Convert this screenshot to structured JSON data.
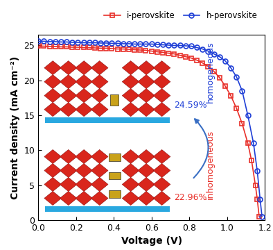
{
  "chart_data": {
    "type": "line",
    "x_label": "Voltage (V)",
    "y_label": "Current density (mA cm⁻²)",
    "xlim": [
      0.0,
      1.2
    ],
    "xticks": [
      {
        "value": 0.0,
        "label": "0.0"
      },
      {
        "value": 0.2,
        "label": "0.2"
      },
      {
        "value": 0.4,
        "label": "0.4"
      },
      {
        "value": 0.6,
        "label": "0.6"
      },
      {
        "value": 0.8,
        "label": "0.8"
      },
      {
        "value": 1.0,
        "label": "1.0"
      },
      {
        "value": 1.2,
        "label": "1.2"
      }
    ],
    "ylim": [
      0,
      26.5
    ],
    "yticks": [
      0,
      5,
      10,
      15,
      20,
      25
    ],
    "legend": "upper right",
    "series": [
      {
        "name": "i-perovskite",
        "color": "#e8302a",
        "marker": "square",
        "x": [
          0.0,
          0.03,
          0.06,
          0.09,
          0.12,
          0.15,
          0.18,
          0.21,
          0.24,
          0.27,
          0.3,
          0.33,
          0.36,
          0.39,
          0.42,
          0.45,
          0.48,
          0.51,
          0.54,
          0.57,
          0.6,
          0.63,
          0.66,
          0.69,
          0.72,
          0.75,
          0.78,
          0.81,
          0.84,
          0.87,
          0.9,
          0.93,
          0.96,
          0.99,
          1.02,
          1.05,
          1.08,
          1.11,
          1.13,
          1.15,
          1.16,
          1.17
        ],
        "values": [
          24.9,
          24.9,
          24.85,
          24.85,
          24.8,
          24.8,
          24.75,
          24.75,
          24.7,
          24.7,
          24.65,
          24.6,
          24.6,
          24.55,
          24.5,
          24.5,
          24.45,
          24.4,
          24.35,
          24.3,
          24.2,
          24.1,
          24.0,
          23.9,
          23.8,
          23.6,
          23.4,
          23.2,
          22.9,
          22.5,
          22.0,
          21.3,
          20.4,
          19.2,
          17.8,
          16.0,
          13.8,
          11.0,
          8.5,
          5.0,
          3.0,
          0.5
        ]
      },
      {
        "name": "h-perovskite",
        "color": "#1f3fd6",
        "marker": "circle",
        "x": [
          0.0,
          0.03,
          0.06,
          0.09,
          0.12,
          0.15,
          0.18,
          0.21,
          0.24,
          0.27,
          0.3,
          0.33,
          0.36,
          0.39,
          0.42,
          0.45,
          0.48,
          0.51,
          0.54,
          0.57,
          0.6,
          0.63,
          0.66,
          0.69,
          0.72,
          0.75,
          0.78,
          0.81,
          0.84,
          0.87,
          0.9,
          0.93,
          0.96,
          0.99,
          1.02,
          1.05,
          1.08,
          1.11,
          1.14,
          1.16,
          1.175,
          1.185
        ],
        "values": [
          25.6,
          25.6,
          25.55,
          25.55,
          25.5,
          25.5,
          25.45,
          25.45,
          25.4,
          25.4,
          25.4,
          25.35,
          25.35,
          25.3,
          25.3,
          25.25,
          25.25,
          25.2,
          25.2,
          25.2,
          25.2,
          25.15,
          25.1,
          25.05,
          25.0,
          25.0,
          24.95,
          24.9,
          24.7,
          24.5,
          24.2,
          23.8,
          23.4,
          22.8,
          21.8,
          20.5,
          18.5,
          15.0,
          11.0,
          7.0,
          3.0,
          0.5
        ]
      }
    ],
    "annotations": [
      {
        "text": "homogeneous",
        "color": "#1f3fd6"
      },
      {
        "text": "24.59%",
        "color": "#1f3fd6"
      },
      {
        "text": "inhomogeneous",
        "color": "#e8302a"
      },
      {
        "text": "22.96%",
        "color": "#e8302a"
      }
    ]
  }
}
